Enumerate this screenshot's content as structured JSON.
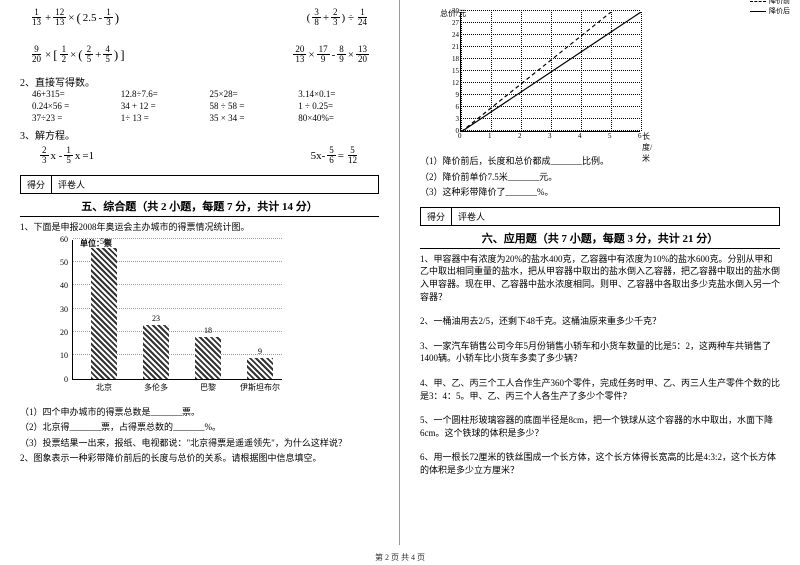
{
  "left": {
    "expr1a": {
      "f1n": "1",
      "f1d": "13",
      "f2n": "12",
      "f2d": "13",
      "inn": "2.5",
      "f3n": "1",
      "f3d": "3"
    },
    "expr1b": {
      "f1n": "3",
      "f1d": "8",
      "f2n": "2",
      "f2d": "3",
      "f3n": "1",
      "f3d": "24"
    },
    "expr2a": {
      "f1n": "9",
      "f1d": "20",
      "f2n": "1",
      "f2d": "2",
      "f3n": "2",
      "f3d": "5",
      "f4n": "4",
      "f4d": "5"
    },
    "expr2b": {
      "f1n": "20",
      "f1d": "13",
      "f2n": "17",
      "f2d": "9",
      "f3n": "8",
      "f3d": "9",
      "f4n": "13",
      "f4d": "20"
    },
    "q2_title": "2、直接写得数。",
    "calc": [
      "46+315=",
      "12.8÷7.6=",
      "25×28=",
      "3.14×0.1=",
      "0.24×56 =",
      "34 + 12 =",
      "58 ÷ 58 =",
      "1 ÷ 0.25=",
      "37÷23 =",
      "1÷ 13 =",
      "35 × 34 =",
      "80×40%="
    ],
    "q3_title": "3、解方程。",
    "eq1": {
      "f1n": "2",
      "f1d": "3",
      "f2n": "1",
      "f2d": "5",
      "rhs": "=1"
    },
    "eq2": {
      "lhs": "5x-",
      "f1n": "5",
      "f1d": "6",
      "eq": "=",
      "f2n": "5",
      "f2d": "12"
    },
    "score": [
      "得分",
      "评卷人"
    ],
    "sec5_title": "五、综合题（共 2 小题，每题 7 分，共计 14 分）",
    "q5_1": "1、下面是申报2008年奥运会主办城市的得票情况统计图。",
    "bar_chart": {
      "unit": "单位：票",
      "y_ticks": [
        0,
        10,
        20,
        30,
        40,
        50,
        60
      ],
      "y_max": 60,
      "bars": [
        {
          "label": "北京",
          "value": 56,
          "x": 18
        },
        {
          "label": "多伦多",
          "value": 23,
          "x": 70
        },
        {
          "label": "巴黎",
          "value": 18,
          "x": 122
        },
        {
          "label": "伊斯坦布尔",
          "value": 9,
          "x": 174
        }
      ]
    },
    "q5_1a": "（1）四个申办城市的得票总数是_______票。",
    "q5_1b": "（2）北京得_______票，占得票总数的_______%。",
    "q5_1c": "（3）投票结果一出来，报纸、电视都说：\"北京得票是遥遥领先\"，为什么这样说？",
    "q5_2": "2、图象表示一种彩带降价前后的长度与总价的关系。请根据图中信息填空。"
  },
  "right": {
    "line_chart": {
      "y_label": "总价/元",
      "x_label": "长度/米",
      "legend_before": "降价前",
      "legend_after": "降价后",
      "y_ticks": [
        0,
        3,
        6,
        9,
        12,
        15,
        18,
        21,
        24,
        27,
        30
      ],
      "x_ticks": [
        0,
        1,
        2,
        3,
        4,
        5,
        6
      ],
      "line_before": [
        [
          0,
          0
        ],
        [
          1,
          6
        ],
        [
          2,
          12
        ],
        [
          3,
          18
        ],
        [
          4,
          24
        ],
        [
          5,
          30
        ]
      ],
      "line_after": [
        [
          0,
          0
        ],
        [
          1,
          5
        ],
        [
          2,
          10
        ],
        [
          3,
          15
        ],
        [
          4,
          20
        ],
        [
          5,
          25
        ],
        [
          6,
          30
        ]
      ]
    },
    "q5_2a": "（1）降价前后，长度和总价都成_______比例。",
    "q5_2b": "（2）降价前单价7.5米_______元。",
    "q5_2c": "（3）这种彩带降价了_______%。",
    "score": [
      "得分",
      "评卷人"
    ],
    "sec6_title": "六、应用题（共 7 小题，每题 3 分，共计 21 分）",
    "q6_1": "1、甲容器中有浓度为20%的盐水400克，乙容器中有浓度为10%的盐水600克。分别从甲和乙中取出相同重量的盐水，把从甲容器中取出的盐水倒入乙容器，把乙容器中取出的盐水倒入甲容器。现在甲、乙容器中盐水浓度相同。则甲、乙容器中各取出多少克盐水倒入另一个容器？",
    "q6_2": "2、一桶油用去2/5，还剩下48千克。这桶油原来重多少千克？",
    "q6_3": "3、一家汽车销售公司今年5月份销售小轿车和小货车数量的比是5：2，这两种车共销售了1400辆。小轿车比小货车多卖了多少辆？",
    "q6_4": "4、甲、乙、丙三个工人合作生产360个零件，完成任务时甲、乙、丙三人生产零件个数的比是3：4：5。甲、乙、丙三个人各生产了多少个零件？",
    "q6_5": "5、一个圆柱形玻璃容器的底面半径是8cm，把一个铁球从这个容器的水中取出，水面下降6cm。这个铁球的体积是多少？",
    "q6_6": "6、用一根长72厘米的铁丝围成一个长方体，这个长方体得长宽高的比是4:3:2，这个长方体的体积是多少立方厘米？"
  },
  "footer": "第 2 页 共 4 页"
}
